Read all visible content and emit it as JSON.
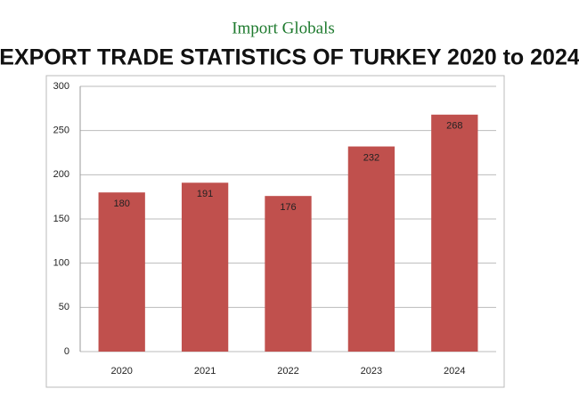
{
  "brand": "Import Globals",
  "chart_data": {
    "type": "bar",
    "title": "EXPORT TRADE STATISTICS OF TURKEY 2020 to 2024",
    "categories": [
      "2020",
      "2021",
      "2022",
      "2023",
      "2024"
    ],
    "values": [
      180,
      191,
      176,
      232,
      268
    ],
    "color": "#c0504d",
    "ylim": [
      0,
      300
    ],
    "yticks": [
      0,
      50,
      100,
      150,
      200,
      250,
      300
    ],
    "grid": true
  }
}
